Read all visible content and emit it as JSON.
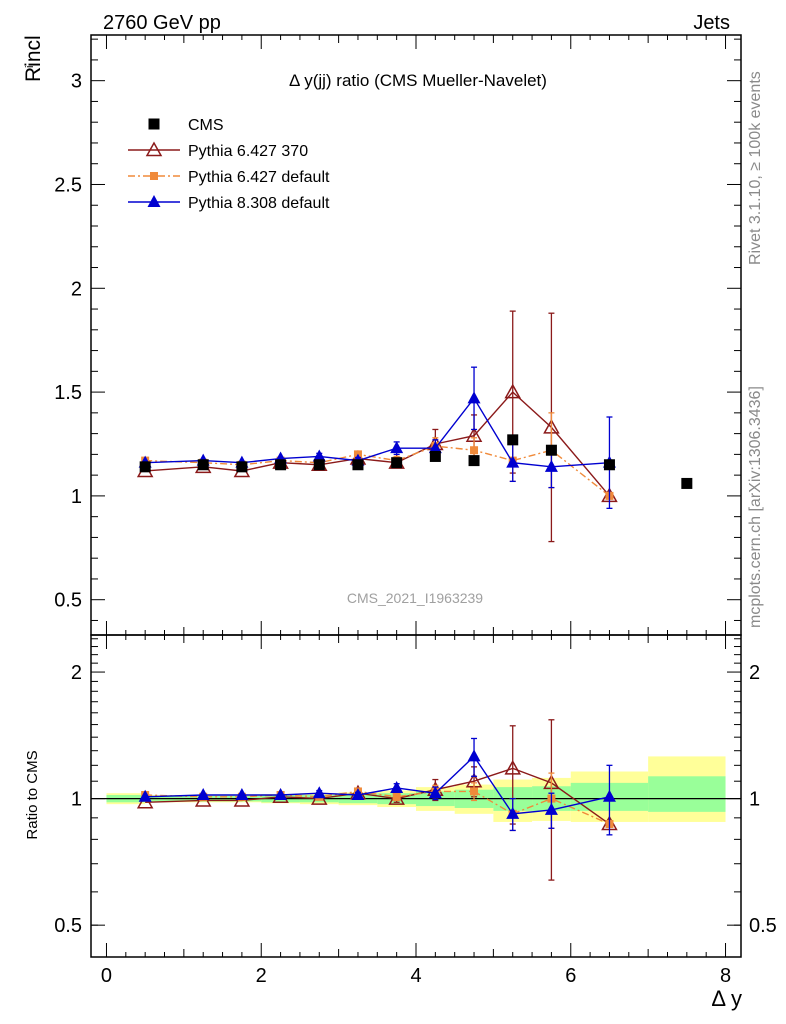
{
  "header": {
    "left": "2760 GeV pp",
    "right": "Jets"
  },
  "side_labels": {
    "rivet": "Rivet 3.1.10, ≥ 100k events",
    "mcplots": "mcplots.cern.ch [arXiv:1306.3436]"
  },
  "main_plot": {
    "title": "Δ y(jj) ratio (CMS Mueller-Navelet)",
    "watermark": "CMS_2021_I1963239",
    "ylabel": "Rincl",
    "ylabel_sup": "i"
  },
  "ratio_plot": {
    "ylabel": "Ratio to CMS"
  },
  "xaxis": {
    "label": "Δ y"
  },
  "chart_data": {
    "type": "scatter",
    "x_range": [
      -0.2,
      8.2
    ],
    "main": {
      "y_range": [
        0.33,
        3.22
      ],
      "yticks": [
        0.5,
        1,
        1.5,
        2,
        2.5,
        3
      ],
      "yticklabels": [
        "0.5",
        "1",
        "1.5",
        "2",
        "2.5",
        "3"
      ]
    },
    "ratio": {
      "y_range": [
        0.42,
        2.45
      ],
      "yticks": [
        0.5,
        1,
        2
      ],
      "yticklabels": [
        "0.5",
        "1",
        "2"
      ],
      "band_yellow": [
        {
          "x0": 0,
          "x1": 0.5,
          "lo": 0.97,
          "hi": 1.03
        },
        {
          "x0": 0.5,
          "x1": 1.5,
          "lo": 0.98,
          "hi": 1.02
        },
        {
          "x0": 1.5,
          "x1": 2.0,
          "lo": 0.98,
          "hi": 1.02
        },
        {
          "x0": 2.0,
          "x1": 2.5,
          "lo": 0.975,
          "hi": 1.025
        },
        {
          "x0": 2.5,
          "x1": 3.0,
          "lo": 0.97,
          "hi": 1.03
        },
        {
          "x0": 3.0,
          "x1": 3.5,
          "lo": 0.965,
          "hi": 1.035
        },
        {
          "x0": 3.5,
          "x1": 4.0,
          "lo": 0.955,
          "hi": 1.045
        },
        {
          "x0": 4.0,
          "x1": 4.5,
          "lo": 0.935,
          "hi": 1.065
        },
        {
          "x0": 4.5,
          "x1": 5.0,
          "lo": 0.92,
          "hi": 1.08
        },
        {
          "x0": 5.0,
          "x1": 5.5,
          "lo": 0.88,
          "hi": 1.11
        },
        {
          "x0": 5.5,
          "x1": 6.0,
          "lo": 0.885,
          "hi": 1.12
        },
        {
          "x0": 6.0,
          "x1": 7.0,
          "lo": 0.88,
          "hi": 1.16
        },
        {
          "x0": 7.0,
          "x1": 8.0,
          "lo": 0.88,
          "hi": 1.26
        }
      ],
      "band_green": [
        {
          "x0": 0,
          "x1": 0.5,
          "lo": 0.98,
          "hi": 1.02
        },
        {
          "x0": 0.5,
          "x1": 1.5,
          "lo": 0.985,
          "hi": 1.015
        },
        {
          "x0": 1.5,
          "x1": 2.0,
          "lo": 0.985,
          "hi": 1.015
        },
        {
          "x0": 2.0,
          "x1": 2.5,
          "lo": 0.98,
          "hi": 1.02
        },
        {
          "x0": 2.5,
          "x1": 3.0,
          "lo": 0.98,
          "hi": 1.02
        },
        {
          "x0": 3.0,
          "x1": 3.5,
          "lo": 0.975,
          "hi": 1.025
        },
        {
          "x0": 3.5,
          "x1": 4.0,
          "lo": 0.97,
          "hi": 1.03
        },
        {
          "x0": 4.0,
          "x1": 4.5,
          "lo": 0.96,
          "hi": 1.04
        },
        {
          "x0": 4.5,
          "x1": 5.0,
          "lo": 0.95,
          "hi": 1.05
        },
        {
          "x0": 5.0,
          "x1": 5.5,
          "lo": 0.935,
          "hi": 1.065
        },
        {
          "x0": 5.5,
          "x1": 6.0,
          "lo": 0.935,
          "hi": 1.07
        },
        {
          "x0": 6.0,
          "x1": 7.0,
          "lo": 0.935,
          "hi": 1.09
        },
        {
          "x0": 7.0,
          "x1": 8.0,
          "lo": 0.93,
          "hi": 1.13
        }
      ]
    },
    "xticks": [
      0,
      2,
      4,
      6,
      8
    ],
    "xticklabels": [
      "0",
      "2",
      "4",
      "6",
      "8"
    ],
    "series": [
      {
        "name": "CMS",
        "color": "#000000",
        "marker": "square",
        "line": "none",
        "x": [
          0.5,
          1.25,
          1.75,
          2.25,
          2.75,
          3.25,
          3.75,
          4.25,
          4.75,
          5.25,
          5.75,
          6.5,
          7.5
        ],
        "y": [
          1.14,
          1.15,
          1.14,
          1.15,
          1.15,
          1.15,
          1.16,
          1.19,
          1.17,
          1.27,
          1.22,
          1.15,
          1.06
        ],
        "err": [
          0,
          0,
          0,
          0,
          0,
          0,
          0,
          0,
          0,
          0,
          0,
          0,
          0
        ]
      },
      {
        "name": "Pythia 6.427 370",
        "color": "#8b1a1a",
        "marker": "triangle-open",
        "line": "solid",
        "x": [
          0.5,
          1.25,
          1.75,
          2.25,
          2.75,
          3.25,
          3.75,
          4.25,
          4.75,
          5.25,
          5.75,
          6.5
        ],
        "y": [
          1.12,
          1.14,
          1.12,
          1.16,
          1.15,
          1.18,
          1.16,
          1.25,
          1.29,
          1.5,
          1.33,
          1.0
        ],
        "err": [
          0.01,
          0.01,
          0.01,
          0.01,
          0.01,
          0.015,
          0.02,
          0.07,
          0.1,
          0.39,
          0.55,
          0.01
        ],
        "ratio": [
          0.98,
          0.99,
          0.99,
          1.01,
          1.0,
          1.03,
          1.0,
          1.05,
          1.1,
          1.18,
          1.09,
          0.87
        ],
        "ratio_err": [
          0.01,
          0.01,
          0.01,
          0.01,
          0.01,
          0.015,
          0.02,
          0.06,
          0.09,
          0.31,
          0.45,
          0.01
        ]
      },
      {
        "name": "Pythia 6.427 default",
        "color": "#f08a3a",
        "marker": "square-small",
        "line": "dashdot",
        "x": [
          0.5,
          1.25,
          1.75,
          2.25,
          2.75,
          3.25,
          3.75,
          4.25,
          4.75,
          5.25,
          5.75,
          6.5
        ],
        "y": [
          1.17,
          1.16,
          1.15,
          1.17,
          1.16,
          1.2,
          1.17,
          1.24,
          1.22,
          1.17,
          1.22,
          1.0
        ],
        "err": [
          0.01,
          0.01,
          0.01,
          0.01,
          0.01,
          0.015,
          0.02,
          0.04,
          0.06,
          0.1,
          0.18,
          0.01
        ],
        "ratio": [
          1.02,
          1.01,
          1.01,
          1.02,
          1.01,
          1.04,
          1.01,
          1.04,
          1.04,
          0.92,
          1.0,
          0.87
        ],
        "ratio_err": [
          0.01,
          0.01,
          0.01,
          0.01,
          0.01,
          0.015,
          0.02,
          0.035,
          0.05,
          0.08,
          0.15,
          0.01
        ]
      },
      {
        "name": "Pythia 8.308 default",
        "color": "#0000d0",
        "marker": "triangle",
        "line": "solid",
        "x": [
          0.5,
          1.25,
          1.75,
          2.25,
          2.75,
          3.25,
          3.75,
          4.25,
          4.75,
          5.25,
          5.75,
          6.5
        ],
        "y": [
          1.16,
          1.17,
          1.16,
          1.18,
          1.19,
          1.17,
          1.23,
          1.23,
          1.47,
          1.16,
          1.14,
          1.16
        ],
        "err": [
          0.01,
          0.01,
          0.01,
          0.01,
          0.015,
          0.015,
          0.03,
          0.04,
          0.15,
          0.09,
          0.1,
          0.22
        ],
        "ratio": [
          1.01,
          1.02,
          1.02,
          1.02,
          1.03,
          1.02,
          1.06,
          1.03,
          1.26,
          0.92,
          0.94,
          1.01
        ],
        "ratio_err": [
          0.01,
          0.01,
          0.01,
          0.01,
          0.015,
          0.015,
          0.025,
          0.035,
          0.13,
          0.08,
          0.09,
          0.19
        ]
      }
    ]
  }
}
